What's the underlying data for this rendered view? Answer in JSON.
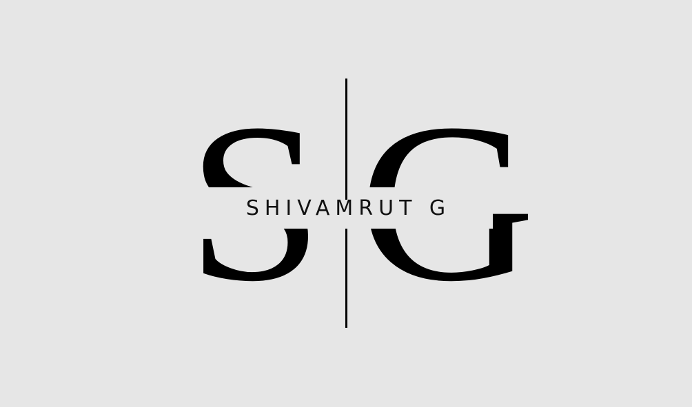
{
  "logo": {
    "monogram": {
      "left_letter": "S",
      "right_letter": "G"
    },
    "name": "SHIVAMRUT G"
  },
  "colors": {
    "background": "#e6e6e6",
    "ink": "#000000"
  }
}
